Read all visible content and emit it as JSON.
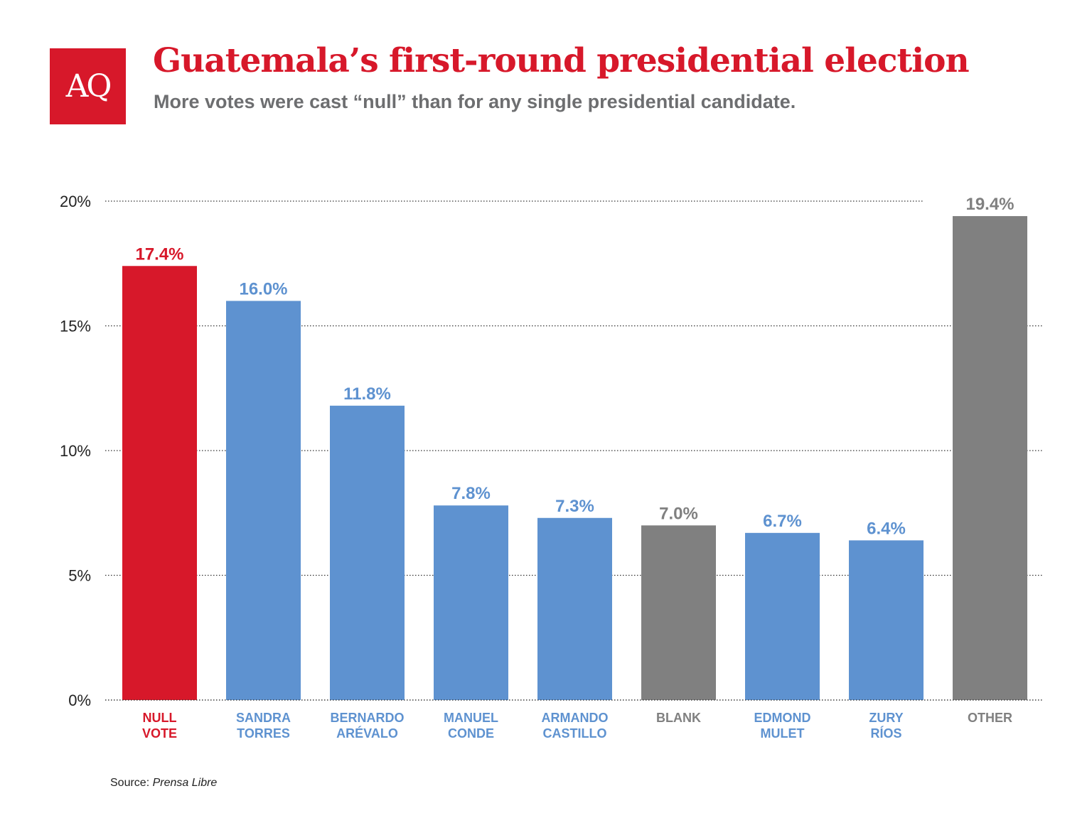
{
  "logo_text": "AQ",
  "colors": {
    "red": "#d7182a",
    "blue": "#5e92d0",
    "gray": "#808080"
  },
  "chart_data": {
    "type": "bar",
    "title": "Guatemala’s first-round presidential election",
    "subtitle": "More votes were cast “null” than for any single presidential candidate.",
    "xlabel": "",
    "ylabel": "",
    "ylim": [
      0,
      20
    ],
    "yticks": [
      0,
      5,
      10,
      15,
      20
    ],
    "ytick_labels": [
      "0%",
      "5%",
      "10%",
      "15%",
      "20%"
    ],
    "grid": true,
    "categories": [
      [
        "NULL",
        "VOTE"
      ],
      [
        "SANDRA",
        "TORRES"
      ],
      [
        "BERNARDO",
        "ARÉVALO"
      ],
      [
        "MANUEL",
        "CONDE"
      ],
      [
        "ARMANDO",
        "CASTILLO"
      ],
      [
        "BLANK"
      ],
      [
        "EDMOND",
        "MULET"
      ],
      [
        "ZURY",
        "RÍOS"
      ],
      [
        "OTHER"
      ]
    ],
    "values": [
      17.4,
      16.0,
      11.8,
      7.8,
      7.3,
      7.0,
      6.7,
      6.4,
      19.4
    ],
    "value_labels": [
      "17.4%",
      "16.0%",
      "11.8%",
      "7.8%",
      "7.3%",
      "7.0%",
      "6.7%",
      "6.4%",
      "19.4%"
    ],
    "bar_colors": [
      "red",
      "blue",
      "blue",
      "blue",
      "blue",
      "gray",
      "blue",
      "blue",
      "gray"
    ]
  },
  "source": {
    "prefix": "Source: ",
    "name": "Prensa Libre"
  }
}
